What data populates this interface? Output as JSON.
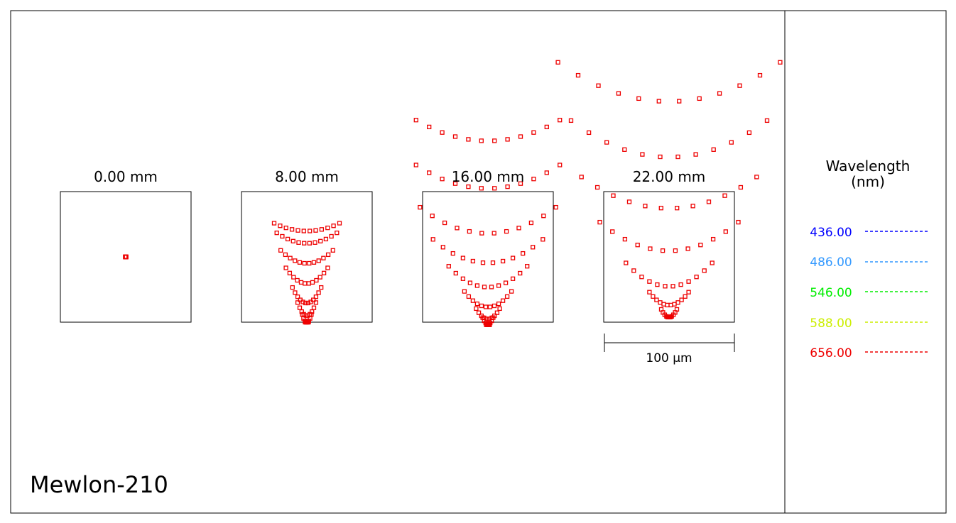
{
  "title": "Mewlon-210",
  "legend": {
    "title_line1": "Wavelength",
    "title_line2": "(nm)",
    "items": [
      {
        "label": "436.00",
        "color": "#0000ff"
      },
      {
        "label": "486.00",
        "color": "#3399ff"
      },
      {
        "label": "546.00",
        "color": "#00ee00"
      },
      {
        "label": "588.00",
        "color": "#ccee00"
      },
      {
        "label": "656.00",
        "color": "#ee0000"
      }
    ]
  },
  "scale_bar": {
    "label": "100 µm",
    "length_um": 100
  },
  "chart_data": {
    "type": "scatter",
    "kind": "spot diagram",
    "marker": "open square",
    "series_color": "#ee0000",
    "fields": [
      {
        "label": "0.00 mm",
        "field_mm": 0.0,
        "rings": []
      },
      {
        "label": "8.00 mm",
        "field_mm": 8.0,
        "rings": [
          {
            "width_um": 50,
            "depth_um": 6,
            "offset_um": -24,
            "n": 12
          },
          {
            "width_um": 46,
            "depth_um": 8,
            "offset_um": -16,
            "n": 12
          },
          {
            "width_um": 40,
            "depth_um": 10,
            "offset_um": -2,
            "n": 12
          },
          {
            "width_um": 32,
            "depth_um": 12,
            "offset_um": 12,
            "n": 12
          },
          {
            "width_um": 22,
            "depth_um": 12,
            "offset_um": 27,
            "n": 12
          },
          {
            "width_um": 14,
            "depth_um": 10,
            "offset_um": 38,
            "n": 10
          },
          {
            "width_um": 7,
            "depth_um": 6,
            "offset_um": 46,
            "n": 8
          }
        ]
      },
      {
        "label": "16.00 mm",
        "field_mm": 16.0,
        "rings": [
          {
            "width_um": 110,
            "depth_um": 16,
            "offset_um": -100,
            "n": 12
          },
          {
            "width_um": 110,
            "depth_um": 18,
            "offset_um": -65,
            "n": 12
          },
          {
            "width_um": 104,
            "depth_um": 20,
            "offset_um": -32,
            "n": 12
          },
          {
            "width_um": 84,
            "depth_um": 18,
            "offset_um": -8,
            "n": 12
          },
          {
            "width_um": 60,
            "depth_um": 16,
            "offset_um": 12,
            "n": 12
          },
          {
            "width_um": 36,
            "depth_um": 12,
            "offset_um": 30,
            "n": 12
          },
          {
            "width_um": 18,
            "depth_um": 8,
            "offset_um": 42,
            "n": 10
          },
          {
            "width_um": 8,
            "depth_um": 5,
            "offset_um": 48,
            "n": 8
          }
        ]
      },
      {
        "label": "22.00 mm",
        "field_mm": 22.0,
        "rings": [
          {
            "width_um": 170,
            "depth_um": 30,
            "offset_um": -140,
            "n": 12
          },
          {
            "width_um": 150,
            "depth_um": 28,
            "offset_um": -96,
            "n": 12
          },
          {
            "width_um": 134,
            "depth_um": 24,
            "offset_um": -54,
            "n": 12
          },
          {
            "width_um": 106,
            "depth_um": 22,
            "offset_um": -20,
            "n": 12
          },
          {
            "width_um": 66,
            "depth_um": 18,
            "offset_um": 10,
            "n": 12
          },
          {
            "width_um": 30,
            "depth_um": 10,
            "offset_um": 30,
            "n": 12
          },
          {
            "width_um": 12,
            "depth_um": 6,
            "offset_um": 42,
            "n": 10
          }
        ]
      }
    ]
  }
}
